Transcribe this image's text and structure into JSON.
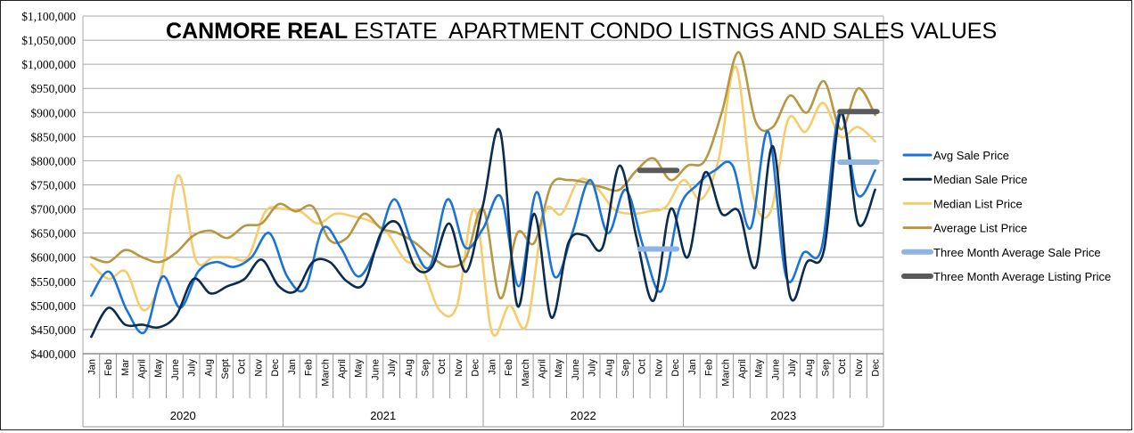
{
  "chart_data": {
    "type": "line",
    "title_bold": "CANMORE REAL",
    "title_rest": " ESTATE  APARTMENT CONDO LISTNGS AND SALES VALUES",
    "ylim": [
      400000,
      1100000
    ],
    "ytick_step": 50000,
    "yticks": [
      "$400,000",
      "$450,000",
      "$500,000",
      "$550,000",
      "$600,000",
      "$650,000",
      "$700,000",
      "$750,000",
      "$800,000",
      "$850,000",
      "$900,000",
      "$950,000",
      "$1,000,000",
      "$1,050,000",
      "$1,100,000"
    ],
    "years": [
      "2020",
      "2021",
      "2022",
      "2023"
    ],
    "month_labels": [
      [
        "Jan",
        "Feb",
        "Mar",
        "April",
        "May",
        "June",
        "July",
        "Aug",
        "Sept",
        "Oct",
        "Nov",
        "Dec"
      ],
      [
        "Jan",
        "Feb",
        "March",
        "April",
        "May",
        "June",
        "July",
        "Aug",
        "Sep",
        "Oct",
        "Nov",
        "Dec"
      ],
      [
        "Jan",
        "Feb",
        "March",
        "April",
        "May",
        "June",
        "July",
        "Aug",
        "Sep",
        "Oct",
        "Nov",
        "Dec"
      ],
      [
        "Jan",
        "Feb",
        "March",
        "April",
        "May",
        "June",
        "July",
        "Aug",
        "Sep",
        "Oct",
        "Nov",
        "Dec"
      ]
    ],
    "series": [
      {
        "name": "Avg Sale Price",
        "color": "#1a73d6",
        "width": 2.6,
        "values": [
          520000,
          570000,
          490000,
          445000,
          560000,
          495000,
          570000,
          590000,
          580000,
          600000,
          650000,
          560000,
          535000,
          660000,
          620000,
          560000,
          620000,
          720000,
          630000,
          580000,
          720000,
          620000,
          660000,
          725000,
          540000,
          735000,
          560000,
          650000,
          760000,
          650000,
          740000,
          620000,
          530000,
          700000,
          750000,
          780000,
          790000,
          660000,
          860000,
          560000,
          610000,
          620000,
          900000,
          730000,
          780000
        ]
      },
      {
        "name": "Median Sale Price",
        "color": "#0b2b4f",
        "width": 2.6,
        "values": [
          435000,
          495000,
          460000,
          460000,
          455000,
          480000,
          555000,
          525000,
          540000,
          555000,
          595000,
          540000,
          530000,
          590000,
          590000,
          550000,
          545000,
          650000,
          670000,
          580000,
          580000,
          670000,
          570000,
          710000,
          860000,
          500000,
          690000,
          475000,
          630000,
          645000,
          620000,
          790000,
          640000,
          510000,
          700000,
          600000,
          775000,
          690000,
          695000,
          580000,
          830000,
          520000,
          590000,
          615000,
          900000,
          670000,
          740000
        ]
      },
      {
        "name": "Median List Price",
        "color": "#f7cc6b",
        "width": 2.6,
        "values": [
          585000,
          555000,
          570000,
          490000,
          560000,
          770000,
          595000,
          600000,
          600000,
          600000,
          695000,
          700000,
          695000,
          670000,
          690000,
          685000,
          675000,
          650000,
          595000,
          575000,
          490000,
          500000,
          700000,
          445000,
          500000,
          460000,
          690000,
          690000,
          760000,
          745000,
          700000,
          690000,
          695000,
          705000,
          760000,
          720000,
          800000,
          995000,
          730000,
          695000,
          885000,
          860000,
          920000,
          850000,
          870000,
          840000
        ]
      },
      {
        "name": "Average List Price",
        "color": "#b89742",
        "width": 2.6,
        "values": [
          600000,
          590000,
          615000,
          600000,
          590000,
          610000,
          645000,
          655000,
          640000,
          665000,
          670000,
          710000,
          695000,
          705000,
          635000,
          640000,
          690000,
          660000,
          650000,
          630000,
          600000,
          580000,
          600000,
          700000,
          515000,
          650000,
          630000,
          750000,
          760000,
          755000,
          745000,
          740000,
          780000,
          805000,
          760000,
          790000,
          800000,
          900000,
          1025000,
          880000,
          870000,
          935000,
          900000,
          965000,
          865000,
          950000,
          895000
        ]
      }
    ],
    "three_month_avg_sale": [
      {
        "from_month": "Oct",
        "to_month": "Dec",
        "year": "2022",
        "value": 617000
      },
      {
        "from_month": "Oct",
        "to_month": "Dec",
        "year": "2023",
        "value": 797000
      }
    ],
    "three_month_avg_listing": [
      {
        "from_month": "Oct",
        "to_month": "Dec",
        "year": "2022",
        "value": 780000
      },
      {
        "from_month": "Oct",
        "to_month": "Dec",
        "year": "2023",
        "value": 902000
      }
    ],
    "legend": [
      {
        "name": "Avg Sale Price",
        "color": "#1a73d6"
      },
      {
        "name": "Median Sale Price",
        "color": "#0b2b4f"
      },
      {
        "name": "Median List Price",
        "color": "#f7cc6b"
      },
      {
        "name": "Average List Price",
        "color": "#b89742"
      },
      {
        "name": "Three Month Average Sale Price",
        "color": "#8fb4e3"
      },
      {
        "name": "Three Month Average Listing Price",
        "color": "#5a5a5a"
      }
    ],
    "legend_position": "right"
  }
}
